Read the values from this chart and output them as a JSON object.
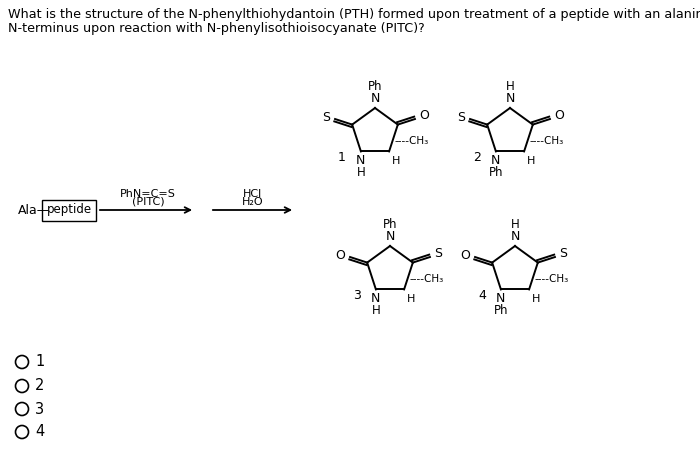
{
  "title_line1": "What is the structure of the N-phenylthiohydantoin (PTH) formed upon treatment of a peptide with an alanine at the",
  "title_line2": "N-terminus upon reaction with N-phenylisothioisocyanate (PITC)?",
  "title_fontsize": 9.2,
  "reagent1": "PhN=C=S",
  "reagent1b": "(PITC)",
  "reagent2": "HCl",
  "reagent2b": "H₂O",
  "reactant_label": "Ala—",
  "reactant_box": "peptide",
  "radio_labels": [
    "1",
    "2",
    "3",
    "4"
  ],
  "struct_scale": 24,
  "lw": 1.4
}
